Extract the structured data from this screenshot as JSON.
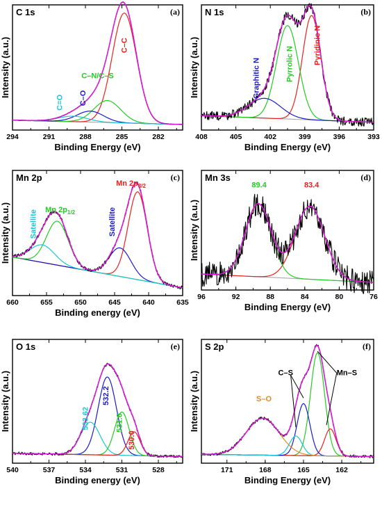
{
  "chart_data": [
    {
      "id": "a",
      "type": "line",
      "letter": "(a)",
      "title": "C 1s",
      "xlabel": "Binding Energy (eV)",
      "ylabel": "Intensity (a.u.)",
      "xlim": [
        294,
        280
      ],
      "xticks": [
        294,
        291,
        288,
        285,
        282
      ],
      "peaks": [
        {
          "label": "C–C",
          "center": 284.8,
          "height": 1.0,
          "width": 1.0,
          "color": "#e8211c"
        },
        {
          "label": "C–N/C–S",
          "center": 286.2,
          "height": 0.2,
          "width": 1.1,
          "color": "#22cc22"
        },
        {
          "label": "C–O",
          "center": 287.6,
          "height": 0.1,
          "width": 1.1,
          "color": "#1a1acc"
        },
        {
          "label": "C=O",
          "center": 289.0,
          "height": 0.05,
          "width": 1.2,
          "color": "#19c7d6"
        }
      ],
      "background": {
        "start": 0.04,
        "end": 0.0
      },
      "noise": 0.0,
      "annotations": [
        {
          "text": "C–C",
          "x": 284.6,
          "y": 0.72,
          "rot": -90,
          "color": "#e8211c"
        },
        {
          "text": "C–N/C–S",
          "x": 287.0,
          "y": 0.42,
          "rot": 0,
          "color": "#22cc22"
        },
        {
          "text": "C–O",
          "x": 288.0,
          "y": 0.24,
          "rot": -90,
          "color": "#1a1acc"
        },
        {
          "text": "C=O",
          "x": 289.9,
          "y": 0.2,
          "rot": -90,
          "color": "#19c7d6"
        }
      ]
    },
    {
      "id": "b",
      "type": "line",
      "letter": "(b)",
      "title": "N 1s",
      "xlabel": "Binding Energy (eV)",
      "ylabel": "Intensity (a.u.)",
      "xlim": [
        408,
        393
      ],
      "xticks": [
        408,
        405,
        402,
        399,
        396,
        393
      ],
      "peaks": [
        {
          "label": "Pyridinic N",
          "center": 398.4,
          "height": 0.95,
          "width": 0.8,
          "color": "#e8211c"
        },
        {
          "label": "Pyrrolic N",
          "center": 400.5,
          "height": 0.85,
          "width": 0.95,
          "color": "#22cc22"
        },
        {
          "label": "Graphitic N",
          "center": 402.5,
          "height": 0.18,
          "width": 1.4,
          "color": "#1a1acc"
        }
      ],
      "background": {
        "start": 0.08,
        "end": 0.02
      },
      "noise": 0.04,
      "annotations": [
        {
          "text": "Pyridinic N",
          "x": 397.7,
          "y": 0.72,
          "rot": -90,
          "color": "#e8211c"
        },
        {
          "text": "Pyrrolic N",
          "x": 400.1,
          "y": 0.55,
          "rot": -90,
          "color": "#22cc22"
        },
        {
          "text": "Graphitic N",
          "x": 403.0,
          "y": 0.42,
          "rot": -90,
          "color": "#1a1acc"
        }
      ]
    },
    {
      "id": "c",
      "type": "line",
      "letter": "(c)",
      "title": "Mn 2p",
      "xlabel": "Binding energy (eV)",
      "ylabel": "Intensity (a.u.)",
      "xlim": [
        660,
        635
      ],
      "xticks": [
        660,
        655,
        650,
        645,
        640,
        635
      ],
      "peaks": [
        {
          "label": "Mn 2p3/2",
          "center": 641.6,
          "height": 0.8,
          "width": 1.4,
          "color": "#e8211c"
        },
        {
          "label": "Satellite",
          "center": 644.2,
          "height": 0.26,
          "width": 1.6,
          "color": "#1a1acc"
        },
        {
          "label": "Mn 2p1/2",
          "center": 653.4,
          "height": 0.4,
          "width": 1.6,
          "color": "#22cc22"
        },
        {
          "label": "Satellite",
          "center": 655.6,
          "height": 0.16,
          "width": 1.8,
          "color": "#19c7d6"
        }
      ],
      "background": {
        "start": 0.3,
        "end": 0.02
      },
      "noise": 0.015,
      "annotations": [
        {
          "text": "Satellite",
          "x": 656.6,
          "y": 0.6,
          "rot": -90,
          "color": "#19c7d6"
        },
        {
          "text": "Satellite",
          "x": 645.0,
          "y": 0.62,
          "rot": -90,
          "color": "#1a1acc"
        }
      ],
      "sub_annotations": [
        {
          "main": "Mn 2p",
          "sub": "1/2",
          "x": 653.0,
          "y": 0.71,
          "color": "#22cc22"
        },
        {
          "main": "Mn 2p",
          "sub": "3/2",
          "x": 642.6,
          "y": 0.95,
          "color": "#e8211c"
        }
      ]
    },
    {
      "id": "d",
      "type": "line",
      "letter": "(d)",
      "title": "Mn 3s",
      "xlabel": "Binding Energy (eV)",
      "ylabel": "Intensity (a.u.)",
      "xlim": [
        96,
        76
      ],
      "xticks": [
        96,
        92,
        88,
        84,
        80,
        76
      ],
      "peaks": [
        {
          "label": "83.4",
          "center": 83.4,
          "height": 0.7,
          "width": 1.7,
          "color": "#e8211c"
        },
        {
          "label": "89.4",
          "center": 89.4,
          "height": 0.7,
          "width": 1.5,
          "color": "#22cc22"
        }
      ],
      "background": {
        "start": 0.1,
        "end": 0.02
      },
      "noise": 0.12,
      "annotations": [
        {
          "text": "89.4",
          "x": 89.3,
          "y": 0.93,
          "rot": 0,
          "color": "#22cc22"
        },
        {
          "text": "83.4",
          "x": 83.2,
          "y": 0.93,
          "rot": 0,
          "color": "#e8211c"
        }
      ]
    },
    {
      "id": "e",
      "type": "line",
      "letter": "(e)",
      "title": "O 1s",
      "xlabel": "Binding energy (eV)",
      "ylabel": "Intensity (a.u.)",
      "xlim": [
        540,
        526
      ],
      "xticks": [
        540,
        537,
        534,
        531,
        528
      ],
      "peaks": [
        {
          "label": "532.2",
          "center": 532.2,
          "height": 0.72,
          "width": 0.75,
          "color": "#1a1acc"
        },
        {
          "label": "533.62",
          "center": 533.6,
          "height": 0.3,
          "width": 0.8,
          "color": "#19c7d6"
        },
        {
          "label": "531.0",
          "center": 531.0,
          "height": 0.4,
          "width": 0.6,
          "color": "#22cc22"
        },
        {
          "label": "530.0",
          "center": 530.0,
          "height": 0.22,
          "width": 0.5,
          "color": "#e8211c"
        }
      ],
      "background": {
        "start": 0.04,
        "end": 0.01
      },
      "noise": 0.012,
      "annotations": [
        {
          "text": "532.2",
          "x": 532.1,
          "y": 0.57,
          "rot": -90,
          "color": "#1a1acc"
        },
        {
          "text": "533.62",
          "x": 533.8,
          "y": 0.36,
          "rot": -90,
          "color": "#19c7d6"
        },
        {
          "text": "531.0",
          "x": 531.0,
          "y": 0.32,
          "rot": -90,
          "color": "#22cc22"
        },
        {
          "text": "530.0",
          "x": 530.0,
          "y": 0.16,
          "rot": -90,
          "color": "#e8211c"
        }
      ]
    },
    {
      "id": "f",
      "type": "line",
      "letter": "(f)",
      "title": "S 2p",
      "xlabel": "Binding Energy (eV)",
      "ylabel": "Intensity (a.u.)",
      "xlim": [
        173,
        159.5
      ],
      "xticks": [
        171,
        168,
        165,
        162
      ],
      "peaks": [
        {
          "label": "Mn–S",
          "center": 163.9,
          "height": 0.95,
          "width": 0.55,
          "color": "#22cc22"
        },
        {
          "label": "Mn–S",
          "center": 162.9,
          "height": 0.25,
          "width": 0.45,
          "color": "#e8211c"
        },
        {
          "label": "C–S",
          "center": 165.0,
          "height": 0.48,
          "width": 0.5,
          "color": "#1a1acc"
        },
        {
          "label": "C–S",
          "center": 165.6,
          "height": 0.18,
          "width": 0.5,
          "color": "#19c7d6"
        },
        {
          "label": "S–O",
          "center": 168.2,
          "height": 0.34,
          "width": 1.3,
          "color": "#e08a1f"
        }
      ],
      "background": {
        "start": 0.03,
        "end": 0.01
      },
      "noise": 0.012,
      "annotations": [
        {
          "text": "S–O",
          "x": 168.1,
          "y": 0.52,
          "rot": 0,
          "color": "#e08a1f"
        },
        {
          "text": "C–S",
          "x": 166.4,
          "y": 0.76,
          "rot": 0,
          "color": "#000000"
        },
        {
          "text": "Mn–S",
          "x": 161.6,
          "y": 0.76,
          "rot": 0,
          "color": "#000000"
        }
      ]
    }
  ]
}
